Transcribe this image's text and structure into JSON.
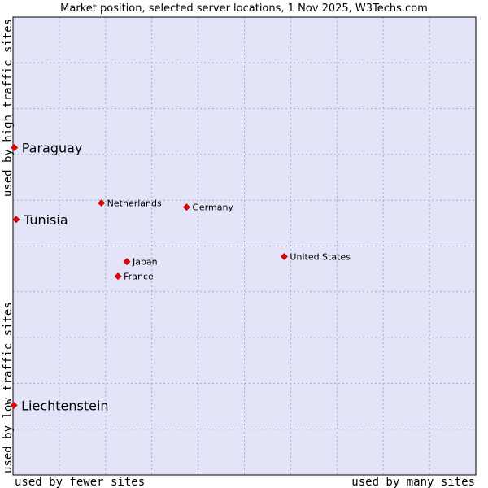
{
  "chart_data": {
    "type": "scatter",
    "title": "Market position, selected server locations, 1 Nov 2025, W3Techs.com",
    "xlabel_left": "used by fewer sites",
    "xlabel_right": "used by many sites",
    "ylabel_bottom": "used by low traffic sites",
    "ylabel_top": "used by high traffic sites",
    "xlim": [
      0,
      100
    ],
    "ylim": [
      0,
      100
    ],
    "grid": true,
    "points": [
      {
        "label": "Paraguay",
        "x": 0.3,
        "y": 71.5,
        "size": "large"
      },
      {
        "label": "Tunisia",
        "x": 0.7,
        "y": 55.8,
        "size": "large"
      },
      {
        "label": "Liechtenstein",
        "x": 0.2,
        "y": 15.2,
        "size": "large"
      },
      {
        "label": "Netherlands",
        "x": 19.1,
        "y": 59.4,
        "size": "small"
      },
      {
        "label": "Germany",
        "x": 37.5,
        "y": 58.5,
        "size": "small"
      },
      {
        "label": "United States",
        "x": 58.6,
        "y": 47.7,
        "size": "small"
      },
      {
        "label": "Japan",
        "x": 24.6,
        "y": 46.6,
        "size": "small"
      },
      {
        "label": "France",
        "x": 22.7,
        "y": 43.4,
        "size": "small"
      }
    ]
  },
  "colors": {
    "plot_background": "#e4e4f8",
    "point": "#ee0000",
    "border": "#000000"
  }
}
